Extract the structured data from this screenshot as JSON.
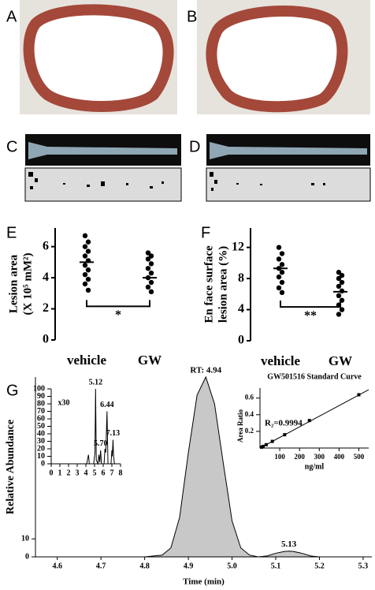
{
  "panel_labels": [
    "A",
    "B",
    "C",
    "D",
    "E",
    "F",
    "G"
  ],
  "chart_data": [
    {
      "type": "strip",
      "ylabel": [
        "Lesion area",
        "(X 10⁵ mM²)"
      ],
      "categories": [
        "vehicle",
        "GW"
      ],
      "groups": [
        {
          "values": [
            6.7,
            6.3,
            6.0,
            5.7,
            5.4,
            5.1,
            4.8,
            4.5,
            4.2,
            3.9,
            3.6,
            3.2
          ],
          "mean": 5.0
        },
        {
          "values": [
            5.6,
            5.4,
            5.2,
            4.9,
            4.6,
            4.3,
            4.0,
            3.7,
            3.4,
            3.1
          ],
          "mean": 4.0
        }
      ],
      "annotation": "*",
      "ylim": [
        0,
        7.2
      ],
      "yticks": [
        0,
        2,
        4,
        6
      ],
      "color": "#000000"
    },
    {
      "type": "strip",
      "ylabel": [
        "En face surface",
        "lesion area (%)"
      ],
      "categories": [
        "vehicle",
        "GW"
      ],
      "groups": [
        {
          "values": [
            12.0,
            11.2,
            10.5,
            9.8,
            9.3,
            8.8,
            8.2,
            7.5,
            6.8,
            6.2
          ],
          "mean": 9.3
        },
        {
          "values": [
            8.8,
            8.4,
            8.0,
            7.5,
            7.0,
            6.4,
            5.8,
            5.2,
            4.6,
            4.0,
            3.4
          ],
          "mean": 6.3
        }
      ],
      "annotation": "**",
      "ylim": [
        0,
        14.5
      ],
      "yticks": [
        0,
        4,
        8,
        12
      ],
      "color": "#000000"
    },
    {
      "type": "area",
      "ylabel": "Relative Abundance",
      "xlabel": "Time (min)",
      "x": [
        4.55,
        4.8,
        4.84,
        4.86,
        4.88,
        4.9,
        4.92,
        4.94,
        4.96,
        4.98,
        5.0,
        5.02,
        5.04,
        5.06,
        5.08,
        5.1,
        5.12,
        5.13,
        5.14,
        5.16,
        5.18,
        5.2,
        5.32
      ],
      "values": [
        0,
        0,
        1,
        5,
        22,
        58,
        90,
        100,
        85,
        52,
        20,
        5,
        1,
        0,
        0.5,
        2,
        3,
        3.2,
        3,
        2,
        0.5,
        0,
        0
      ],
      "xlim": [
        4.55,
        5.32
      ],
      "xticks": [
        4.6,
        4.7,
        4.8,
        4.9,
        {
          "value": 5,
          "label": "5.0"
        },
        5.1,
        5.2,
        5.3
      ],
      "ylim": [
        0,
        100
      ],
      "yticks": [
        0,
        10
      ],
      "color": "#c8c8c8",
      "annotations": [
        {
          "text": "RT: 4.94",
          "x": 4.94,
          "y": 100
        },
        {
          "text": "5.13",
          "x": 5.13,
          "y": 3.2
        }
      ]
    },
    {
      "type": "line",
      "label": "x30",
      "x": [
        0,
        4.1,
        4.3,
        4.4,
        4.9,
        5.05,
        5.12,
        5.2,
        5.4,
        5.5,
        5.6,
        5.7,
        5.8,
        6.1,
        6.2,
        6.3,
        6.44,
        6.55,
        6.9,
        7.0,
        7.05,
        7.13,
        7.2,
        7.3,
        8
      ],
      "values": [
        0,
        0,
        12,
        0,
        0,
        15,
        100,
        5,
        0,
        12,
        2,
        18,
        0,
        0,
        20,
        15,
        70,
        0,
        0,
        18,
        10,
        32,
        10,
        0,
        0
      ],
      "xlim": [
        0,
        8
      ],
      "xticks": [
        0,
        1,
        2,
        3,
        4,
        5,
        6,
        7,
        8
      ],
      "ylim": [
        0,
        100
      ],
      "yticks": [
        0,
        10,
        20,
        30,
        40,
        50,
        60,
        70,
        80,
        90,
        100
      ],
      "color": "#000000",
      "annotations": [
        {
          "text": "5.12",
          "x": 5.12,
          "y": 100
        },
        {
          "text": "5.70",
          "x": 5.7,
          "y": 18
        },
        {
          "text": "6.44",
          "x": 6.44,
          "y": 70
        },
        {
          "text": "7.13",
          "x": 7.13,
          "y": 32
        }
      ]
    },
    {
      "type": "scatter",
      "title": "GW501516 Standard Curve",
      "xlabel": "ng/ml",
      "ylabel": "Area Ratio",
      "annotation": "R₂=0.9994",
      "x": [
        7.8,
        15.6,
        31.25,
        62.5,
        125,
        250,
        500
      ],
      "values": [
        0.01,
        0.02,
        0.04,
        0.08,
        0.16,
        0.33,
        0.64
      ],
      "fit_line": {
        "x": [
          0,
          550
        ],
        "values": [
          0,
          0.7
        ]
      },
      "xlim": [
        0,
        550
      ],
      "xticks": [
        100,
        200,
        300,
        400,
        500
      ],
      "ylim": [
        0,
        0.72
      ],
      "yticks": [
        0.2,
        0.4,
        0.6
      ],
      "color": "#000000"
    }
  ]
}
